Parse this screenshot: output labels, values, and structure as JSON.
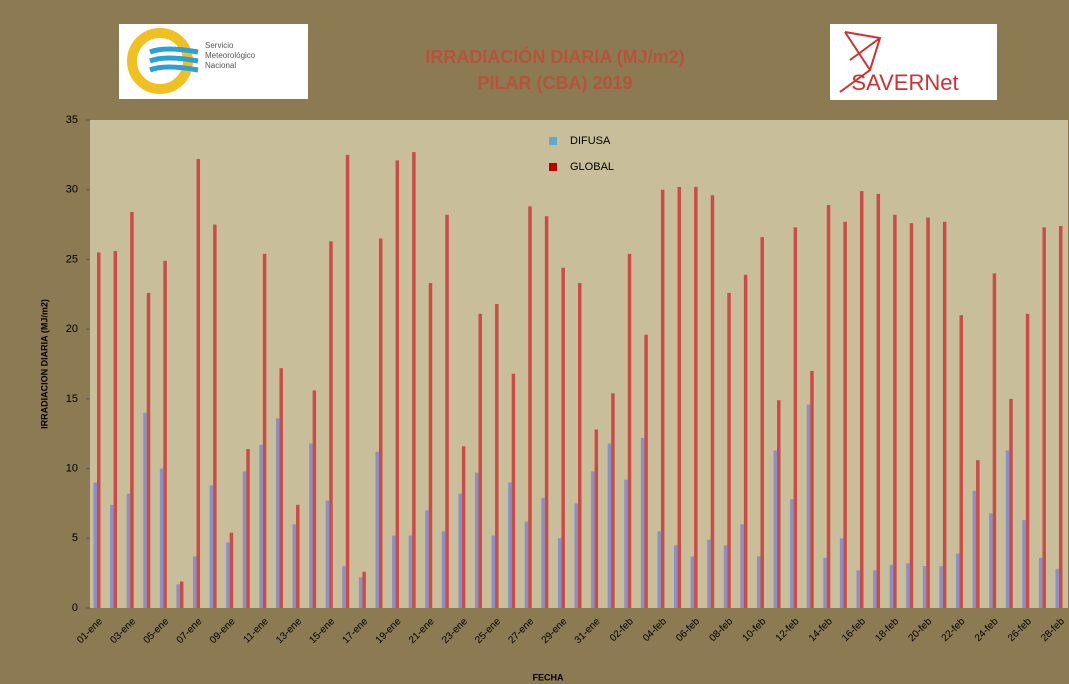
{
  "logos": {
    "smn": [
      "Servicio",
      "Meteorológico",
      "Nacional"
    ],
    "savernet": "SAVERNet"
  },
  "chart_data": {
    "type": "bar",
    "title": "IRRADIACIÓN  DIARIA  (MJ/m2)",
    "subtitle": "PILAR (CBA) 2019",
    "y_label": "IRRADIACION DIARIA (MJ/m2)",
    "x_label": "FECHA",
    "categories": [
      "01-ene",
      null,
      "03-ene",
      null,
      "05-ene",
      null,
      "07-ene",
      null,
      "09-ene",
      null,
      "11-ene",
      null,
      "13-ene",
      null,
      "15-ene",
      null,
      "17-ene",
      null,
      "19-ene",
      null,
      "21-ene",
      null,
      "23-ene",
      null,
      "25-ene",
      null,
      "27-ene",
      null,
      "29-ene",
      null,
      "31-ene",
      null,
      "02-feb",
      null,
      "04-feb",
      null,
      "06-feb",
      null,
      "08-feb",
      null,
      "10-feb",
      null,
      "12-feb",
      null,
      "14-feb",
      null,
      "16-feb",
      null,
      "18-feb",
      null,
      "20-feb",
      null,
      "22-feb",
      null,
      "24-feb",
      null,
      "26-feb",
      null,
      "28-feb"
    ],
    "series": [
      {
        "name": "DIFUSA",
        "color": "#8790c8",
        "legend_color": "#5ea9cc",
        "values": [
          9,
          7.4,
          8.2,
          14,
          10,
          1.7,
          3.7,
          8.8,
          4.7,
          9.8,
          11.7,
          13.6,
          6,
          11.8,
          7.7,
          3,
          2.2,
          11.2,
          5.2,
          5.2,
          7,
          5.5,
          8.2,
          9.7,
          5.2,
          9,
          6.2,
          7.9,
          5,
          7.5,
          9.8,
          11.8,
          9.2,
          12.2,
          5.5,
          4.5,
          3.7,
          4.9,
          4.5,
          6,
          3.7,
          11.3,
          7.8,
          14.6,
          3.6,
          5,
          2.7,
          2.7,
          3.1,
          3.2,
          3,
          3,
          3.9,
          8.4,
          6.8,
          11.3,
          6.3,
          3.6,
          2.8
        ]
      },
      {
        "name": "GLOBAL",
        "color": "#cc4a48",
        "legend_color": "#c00000",
        "values": [
          25.5,
          25.6,
          28.4,
          22.6,
          24.9,
          1.9,
          32.2,
          27.5,
          5.4,
          11.4,
          25.4,
          17.2,
          7.4,
          15.6,
          26.3,
          32.5,
          2.6,
          26.5,
          32.1,
          32.7,
          23.3,
          28.2,
          11.6,
          21.1,
          21.8,
          16.8,
          28.8,
          28.1,
          24.4,
          23.3,
          12.8,
          15.4,
          25.4,
          19.6,
          30,
          30.2,
          30.2,
          29.6,
          22.6,
          23.9,
          26.6,
          14.9,
          27.3,
          17,
          28.9,
          27.7,
          29.9,
          29.7,
          28.2,
          27.6,
          28,
          27.7,
          21,
          10.6,
          24,
          15,
          21.1,
          27.3,
          27.4
        ]
      }
    ],
    "ylim": [
      0,
      35
    ],
    "yticks": [
      0,
      5,
      10,
      15,
      20,
      25,
      30,
      35
    ],
    "grid": false
  }
}
